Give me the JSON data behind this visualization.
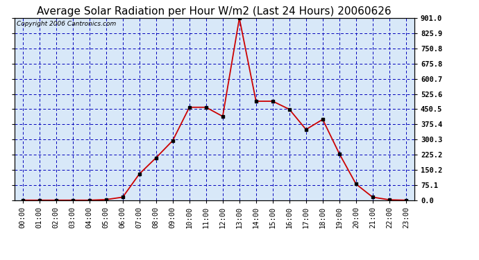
{
  "title": "Average Solar Radiation per Hour W/m2 (Last 24 Hours) 20060626",
  "copyright": "Copyright 2006 Cantronics.com",
  "hours": [
    "00:00",
    "01:00",
    "02:00",
    "03:00",
    "04:00",
    "05:00",
    "06:00",
    "07:00",
    "08:00",
    "09:00",
    "10:00",
    "11:00",
    "12:00",
    "13:00",
    "14:00",
    "15:00",
    "16:00",
    "17:00",
    "18:00",
    "19:00",
    "20:00",
    "21:00",
    "22:00",
    "23:00"
  ],
  "values": [
    0,
    0,
    0,
    0,
    0,
    3,
    15,
    130,
    210,
    295,
    460,
    460,
    415,
    901,
    490,
    490,
    450,
    350,
    400,
    230,
    80,
    15,
    2,
    0
  ],
  "line_color": "#cc0000",
  "marker_color": "#000000",
  "bg_color": "#d8e8f8",
  "grid_color": "#0000bb",
  "border_color": "#000000",
  "title_color": "#000000",
  "copyright_color": "#000000",
  "ylabel_right_ticks": [
    0.0,
    75.1,
    150.2,
    225.2,
    300.3,
    375.4,
    450.5,
    525.6,
    600.7,
    675.8,
    750.8,
    825.9,
    901.0
  ],
  "ymax": 901.0,
  "ymin": 0.0,
  "title_fontsize": 11,
  "copyright_fontsize": 6.5,
  "tick_fontsize": 7.5
}
